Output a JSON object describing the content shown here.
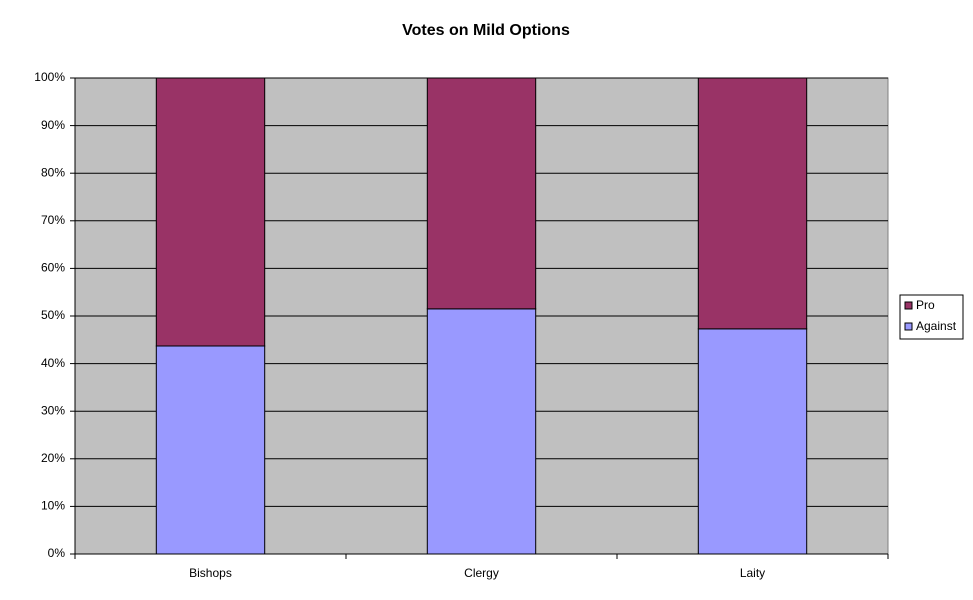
{
  "chart_data": {
    "type": "stacked_bar",
    "title": "Votes on Mild Options",
    "categories": [
      "Bishops",
      "Clergy",
      "Laity"
    ],
    "series": [
      {
        "name": "Against",
        "color": "#9999ff",
        "values": [
          43.7,
          51.5,
          47.3
        ]
      },
      {
        "name": "Pro",
        "color": "#993366",
        "values": [
          56.3,
          48.5,
          52.7
        ]
      }
    ],
    "ylim": [
      0,
      100
    ],
    "yticks": [
      {
        "value": 0,
        "label": "0%"
      },
      {
        "value": 10,
        "label": "10%"
      },
      {
        "value": 20,
        "label": "20%"
      },
      {
        "value": 30,
        "label": "30%"
      },
      {
        "value": 40,
        "label": "40%"
      },
      {
        "value": 50,
        "label": "50%"
      },
      {
        "value": 60,
        "label": "60%"
      },
      {
        "value": 70,
        "label": "70%"
      },
      {
        "value": 80,
        "label": "80%"
      },
      {
        "value": 90,
        "label": "90%"
      },
      {
        "value": 100,
        "label": "100%"
      }
    ],
    "grid": true,
    "legend": "right",
    "plot_background": "#c0c0c0"
  }
}
